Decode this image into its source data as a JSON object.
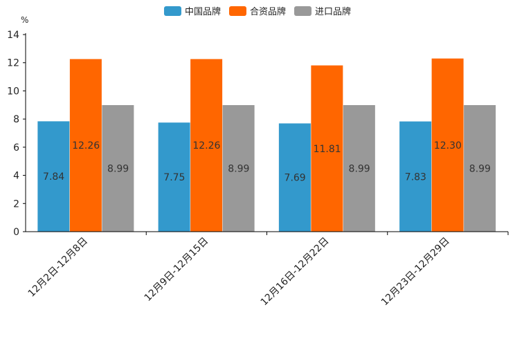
{
  "chart_data": {
    "type": "bar",
    "ylabel": "%",
    "ylim": [
      0,
      14
    ],
    "yticks": [
      0,
      2,
      4,
      6,
      8,
      10,
      12,
      14
    ],
    "categories": [
      "12月2日-12月8日",
      "12月9日-12月15日",
      "12月16日-12月22日",
      "12月23日-12月29日"
    ],
    "series": [
      {
        "name": "中国品牌",
        "color": "#3399cc",
        "values": [
          7.84,
          7.75,
          7.69,
          7.83
        ],
        "labels": [
          "7.84",
          "7.75",
          "7.69",
          "7.83"
        ]
      },
      {
        "name": "合资品牌",
        "color": "#ff6600",
        "values": [
          12.26,
          12.26,
          11.81,
          12.3
        ],
        "labels": [
          "12.26",
          "12.26",
          "11.81",
          "12.30"
        ]
      },
      {
        "name": "进口品牌",
        "color": "#999999",
        "values": [
          8.99,
          8.99,
          8.99,
          8.99
        ],
        "labels": [
          "8.99",
          "8.99",
          "8.99",
          "8.99"
        ]
      }
    ],
    "legend_position": "top-center",
    "grid": false
  }
}
